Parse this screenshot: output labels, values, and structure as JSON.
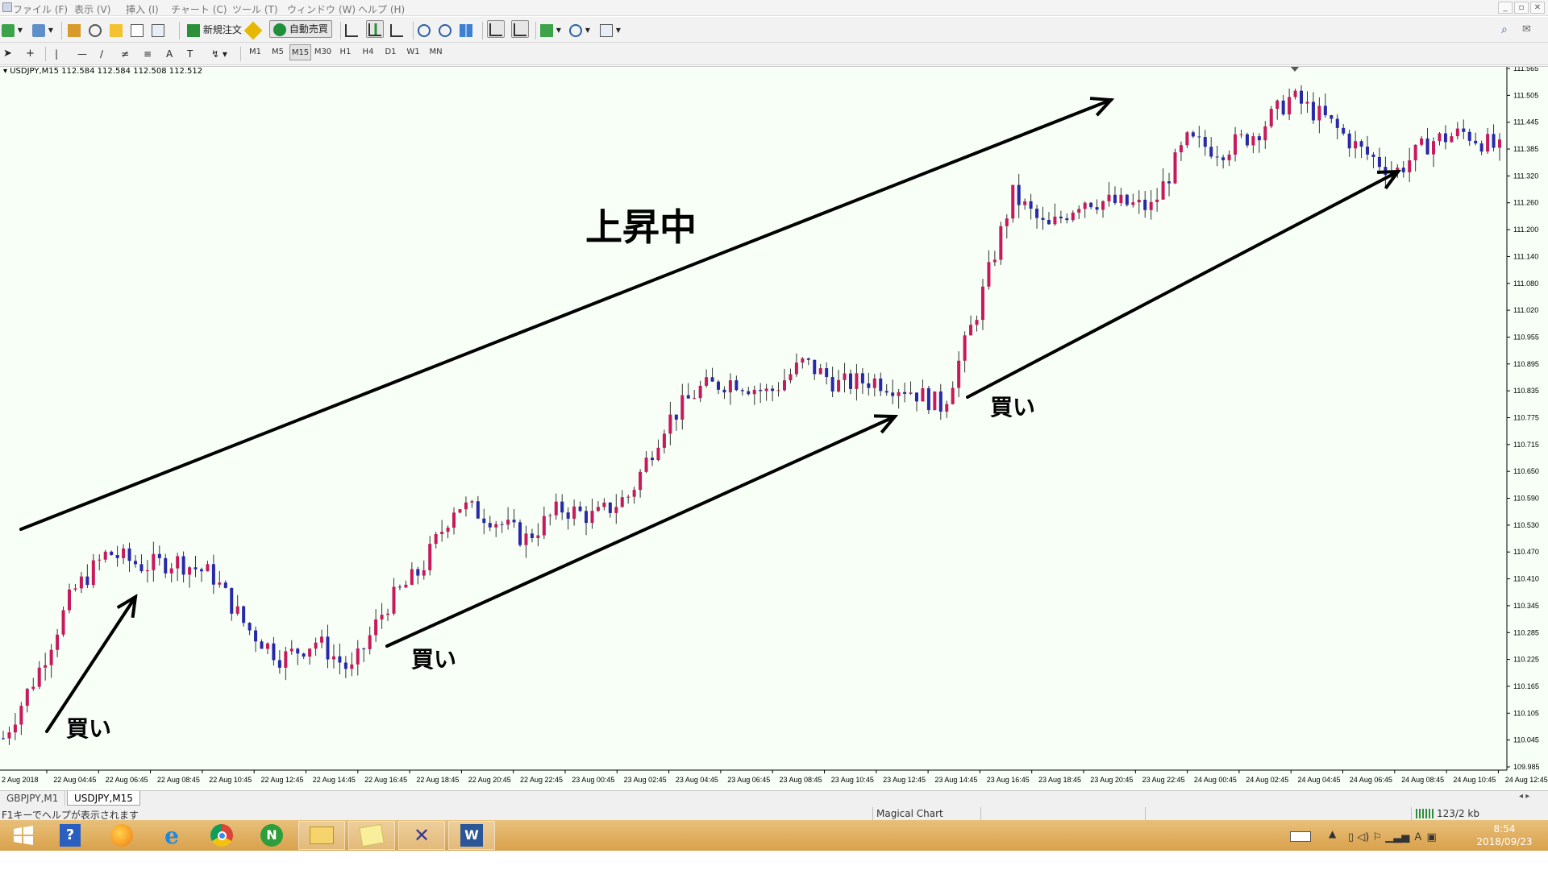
{
  "window": {
    "menus": [
      "ファイル (F)",
      "表示 (V)",
      "挿入 (I)",
      "チャート (C)",
      "ツール (T)",
      "ウィンドウ (W)",
      "ヘルプ (H)"
    ]
  },
  "toolbar": {
    "new_order_label": "新規注文",
    "auto_trade_label": "自動売買"
  },
  "timeframes": [
    "M1",
    "M5",
    "M15",
    "M30",
    "H1",
    "H4",
    "D1",
    "W1",
    "MN"
  ],
  "timeframe_selected": "M15",
  "chart": {
    "header": "USDJPY,M15  112.584 112.584 112.508 112.512",
    "price_labels": [
      "111.565",
      "111.505",
      "111.445",
      "111.385",
      "111.320",
      "111.260",
      "111.200",
      "111.140",
      "111.080",
      "111.020",
      "110.955",
      "110.895",
      "110.835",
      "110.775",
      "110.715",
      "110.650",
      "110.590",
      "110.530",
      "110.470",
      "110.410",
      "110.345",
      "110.285",
      "110.225",
      "110.165",
      "110.105",
      "110.045",
      "109.985"
    ],
    "time_labels": [
      "2 Aug 2018",
      "22 Aug 04:45",
      "22 Aug 06:45",
      "22 Aug 08:45",
      "22 Aug 10:45",
      "22 Aug 12:45",
      "22 Aug 14:45",
      "22 Aug 16:45",
      "22 Aug 18:45",
      "22 Aug 20:45",
      "22 Aug 22:45",
      "23 Aug 00:45",
      "23 Aug 02:45",
      "23 Aug 04:45",
      "23 Aug 06:45",
      "23 Aug 08:45",
      "23 Aug 10:45",
      "23 Aug 12:45",
      "23 Aug 14:45",
      "23 Aug 16:45",
      "23 Aug 18:45",
      "23 Aug 20:45",
      "23 Aug 22:45",
      "24 Aug 00:45",
      "24 Aug 02:45",
      "24 Aug 04:45",
      "24 Aug 06:45",
      "24 Aug 08:45",
      "24 Aug 10:45",
      "24 Aug 12:45"
    ],
    "annotation_uptrend": "上昇中",
    "annotation_buy": "買い",
    "colors": {
      "bg": "#f7fff7",
      "bull": "#c8195c",
      "bear": "#2828a8",
      "grid_text": "#000000"
    }
  },
  "chart_data": {
    "type": "candlestick",
    "symbol": "USDJPY",
    "timeframe": "M15",
    "ylim": [
      109.985,
      111.565
    ],
    "approx_close_path": [
      110.05,
      110.2,
      110.38,
      110.47,
      110.44,
      110.45,
      110.42,
      110.3,
      110.23,
      110.27,
      110.2,
      110.35,
      110.43,
      110.58,
      110.55,
      110.5,
      110.57,
      110.55,
      110.6,
      110.76,
      110.84,
      110.86,
      110.83,
      110.9,
      110.85,
      110.86,
      110.84,
      110.8,
      111.02,
      111.28,
      111.2,
      111.27,
      111.26,
      111.25,
      111.4,
      111.38,
      111.42,
      111.5,
      111.45,
      111.38,
      111.33,
      111.4,
      111.42,
      111.38
    ]
  },
  "tabs": [
    "GBPJPY,M1",
    "USDJPY,M15"
  ],
  "tab_selected": "USDJPY,M15",
  "status": {
    "help": "F1キーでヘルプが表示されます",
    "profile": "Magical Chart",
    "traffic": "123/2 kb"
  },
  "taskbar": {
    "time": "8:54",
    "date": "2018/09/23"
  }
}
